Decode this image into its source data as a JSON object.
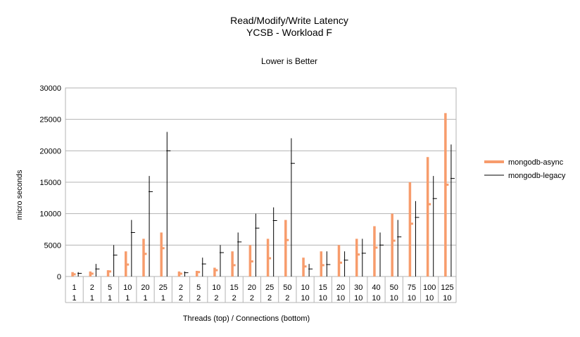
{
  "chart_data": {
    "type": "bar",
    "title": "Read/Modify/Write Latency",
    "subtitle": "YCSB - Workload F",
    "note": "Lower is Better",
    "xlabel": "Threads (top)  / Connections (bottom)",
    "ylabel": "micro seconds",
    "ylim": [
      0,
      30000
    ],
    "yticks": [
      0,
      5000,
      10000,
      15000,
      20000,
      25000,
      30000
    ],
    "grid": true,
    "legend_position": "right",
    "categories_top": [
      "1",
      "2",
      "5",
      "10",
      "20",
      "25",
      "2",
      "5",
      "10",
      "15",
      "20",
      "25",
      "50",
      "10",
      "15",
      "20",
      "30",
      "40",
      "50",
      "75",
      "100",
      "125"
    ],
    "categories_bottom": [
      "1",
      "1",
      "1",
      "1",
      "1",
      "1",
      "2",
      "2",
      "2",
      "2",
      "2",
      "2",
      "2",
      "10",
      "10",
      "10",
      "10",
      "10",
      "10",
      "10",
      "10",
      "10"
    ],
    "series": [
      {
        "name": "mongodb-async",
        "color": "#f79c6c",
        "high": [
          700,
          800,
          1000,
          4000,
          6000,
          7000,
          800,
          900,
          1400,
          4000,
          5000,
          6000,
          9000,
          3000,
          4000,
          5000,
          6000,
          8000,
          10000,
          15000,
          19000,
          26000
        ],
        "mid": [
          350,
          450,
          800,
          1900,
          3600,
          4500,
          450,
          700,
          1000,
          1800,
          2400,
          2900,
          5800,
          1600,
          1800,
          2200,
          3500,
          4600,
          5700,
          8400,
          11500,
          14600
        ]
      },
      {
        "name": "mongodb-legacy",
        "color": "#000000",
        "high": [
          700,
          2000,
          5000,
          9000,
          16000,
          23000,
          800,
          3000,
          5000,
          7000,
          10000,
          11000,
          22000,
          2000,
          4000,
          4000,
          6000,
          7000,
          9000,
          12000,
          16000,
          21000
        ],
        "mid": [
          500,
          1200,
          3400,
          7000,
          13500,
          20000,
          600,
          2000,
          3800,
          5500,
          7700,
          8900,
          18000,
          1200,
          1900,
          2600,
          3700,
          5000,
          6300,
          9400,
          12400,
          15600
        ]
      }
    ]
  }
}
